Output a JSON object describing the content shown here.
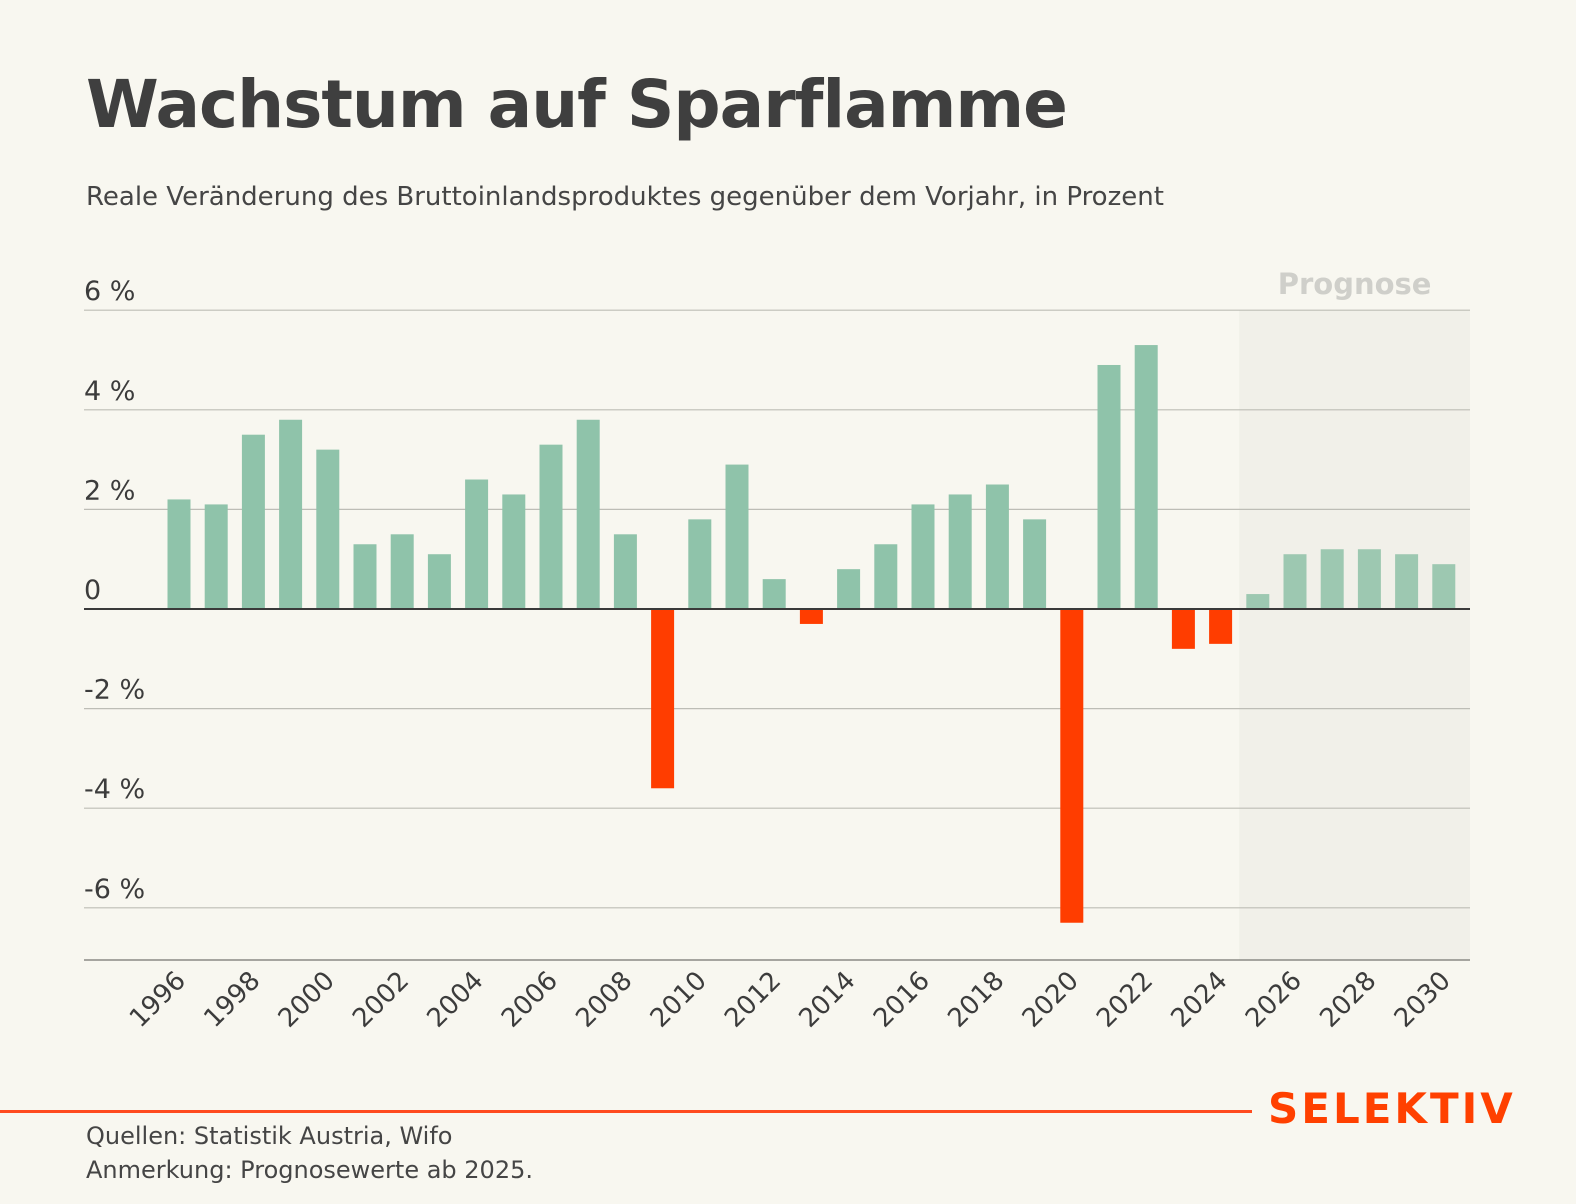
{
  "header": {
    "title": "Wachstum auf Sparflamme",
    "subtitle": "Reale Veränderung des Bruttoinlandsproduktes gegenüber dem Vorjahr, in Prozent"
  },
  "chart_data": {
    "type": "bar",
    "title": "Wachstum auf Sparflamme",
    "subtitle": "Reale Veränderung des Bruttoinlandsproduktes gegenüber dem Vorjahr, in Prozent",
    "xlabel": "",
    "ylabel": "",
    "ylim": [
      -7,
      6
    ],
    "yticks": [
      6,
      4,
      2,
      0,
      -2,
      -4,
      -6
    ],
    "ytick_labels": [
      "6 %",
      "4 %",
      "2 %",
      "0",
      "-2 %",
      "-4 %",
      "-6 %"
    ],
    "grid": true,
    "forecast_label": "Prognose",
    "forecast_from": 2025,
    "categories": [
      1996,
      1997,
      1998,
      1999,
      2000,
      2001,
      2002,
      2003,
      2004,
      2005,
      2006,
      2007,
      2008,
      2009,
      2010,
      2011,
      2012,
      2013,
      2014,
      2015,
      2016,
      2017,
      2018,
      2019,
      2020,
      2021,
      2022,
      2023,
      2024,
      2025,
      2026,
      2027,
      2028,
      2029,
      2030
    ],
    "xtick_labels": [
      "1996",
      "1998",
      "2000",
      "2002",
      "2004",
      "2006",
      "2008",
      "2010",
      "2012",
      "2014",
      "2016",
      "2018",
      "2020",
      "2022",
      "2024",
      "2026",
      "2028",
      "2030"
    ],
    "values": [
      2.2,
      2.1,
      3.5,
      3.8,
      3.2,
      1.3,
      1.5,
      1.1,
      2.6,
      2.3,
      3.3,
      3.8,
      1.5,
      -3.6,
      1.8,
      2.9,
      0.6,
      -0.3,
      0.8,
      1.3,
      2.1,
      2.3,
      2.5,
      1.8,
      -6.3,
      4.9,
      5.3,
      -0.8,
      -0.7,
      0.3,
      1.1,
      1.2,
      1.2,
      1.1,
      0.9
    ],
    "colors": {
      "positive": "#8fc3aa",
      "positive_forecast": "#9dc8b1",
      "negative": "#ff3d00",
      "forecast_background": "#f1f0e9",
      "gridline": "#bdbdb6",
      "zero_line": "#3a3a3a"
    }
  },
  "footer": {
    "brand": "SELEKTIV",
    "sources": "Quellen: Statistik Austria, Wifo",
    "note": "Anmerkung: Prognosewerte ab 2025."
  }
}
